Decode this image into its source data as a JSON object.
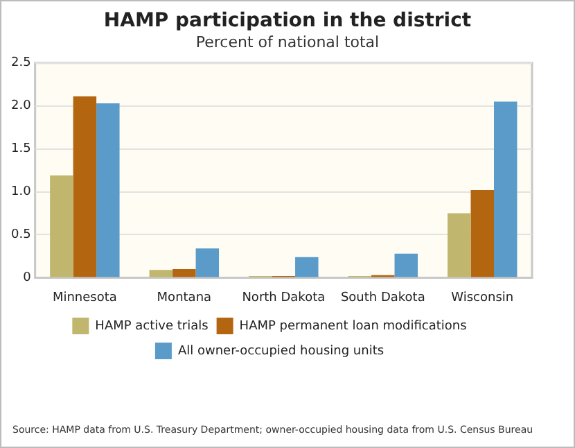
{
  "chart_data": {
    "type": "bar",
    "title": "HAMP participation in the district",
    "subtitle": "Percent of national total",
    "categories": [
      "Minnesota",
      "Montana",
      "North Dakota",
      "South Dakota",
      "Wisconsin"
    ],
    "series": [
      {
        "name": "HAMP active trials",
        "color": "#c0b66d",
        "values": [
          1.19,
          0.09,
          0.02,
          0.02,
          0.75
        ]
      },
      {
        "name": "HAMP permanent loan modifications",
        "color": "#b46510",
        "values": [
          2.11,
          0.1,
          0.02,
          0.03,
          1.02
        ]
      },
      {
        "name": "All owner-occupied housing units",
        "color": "#5b9bc9",
        "values": [
          2.03,
          0.34,
          0.24,
          0.28,
          2.05
        ]
      }
    ],
    "ylim": [
      0,
      2.5
    ],
    "yticks": [
      0,
      {
        "value": 0.5,
        "label": "0.5"
      },
      {
        "value": 1,
        "label": "1.0"
      },
      {
        "value": 1.5,
        "label": "1.5"
      },
      {
        "value": 2,
        "label": "2.0"
      },
      {
        "value": 2.5,
        "label": "2.5"
      }
    ],
    "grid": "y",
    "legend": "bottom",
    "annotations": [
      "Source: HAMP data from U.S. Treasury Department; owner-occupied housing data from U.S. Census Bureau"
    ]
  }
}
